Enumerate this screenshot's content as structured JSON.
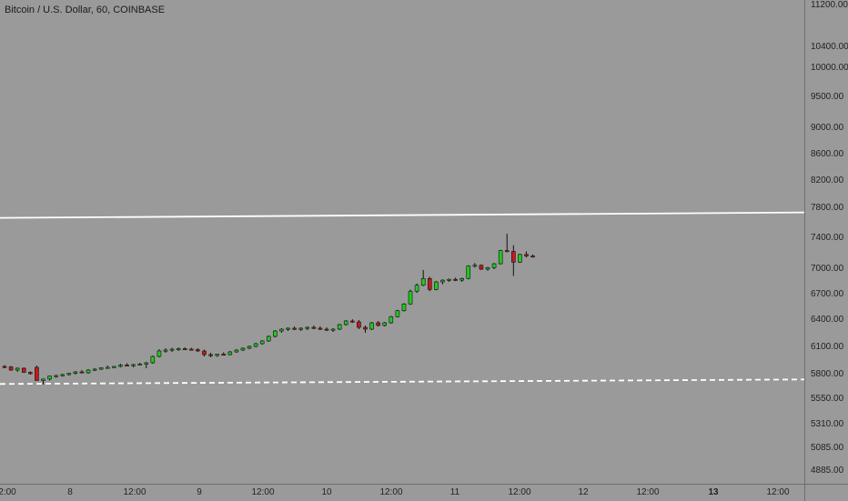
{
  "header": {
    "title": "Bitcoin / U.S. Dollar, 60, COINBASE"
  },
  "price_axis": {
    "labels": [
      "11200.00",
      "10400.00",
      "10000.00",
      "9500.00",
      "9000.00",
      "8600.00",
      "8200.00",
      "7800.00",
      "7400.00",
      "7000.00",
      "6700.00",
      "6400.00",
      "6100.00",
      "5800.00",
      "5550.00",
      "5310.00",
      "5085.00",
      "4885.00"
    ],
    "y_px_placeholder": []
  },
  "time_axis": {
    "labels": [
      "2:00",
      "8",
      "12:00",
      "9",
      "12:00",
      "10",
      "12:00",
      "11",
      "12:00",
      "12",
      "12:00",
      "13",
      "12:00"
    ],
    "bold": [
      false,
      false,
      false,
      false,
      false,
      false,
      false,
      false,
      false,
      false,
      false,
      true,
      false
    ]
  },
  "colors": {
    "up": "#22c722",
    "down": "#c41a1a",
    "wick": "#111111",
    "hline": "#ffffff"
  },
  "chart_data": {
    "type": "candlestick",
    "symbol": "BTCUSD",
    "interval": "60",
    "price_range": [
      4885,
      11200
    ],
    "horizontal_lines": [
      {
        "price": 7780,
        "style": "solid"
      },
      {
        "price": 5760,
        "style": "dashed"
      }
    ],
    "candles": [
      [
        5890,
        5905,
        5870,
        5885
      ],
      [
        5885,
        5895,
        5840,
        5850
      ],
      [
        5850,
        5880,
        5830,
        5870
      ],
      [
        5870,
        5880,
        5820,
        5825
      ],
      [
        5825,
        5835,
        5800,
        5810
      ],
      [
        5880,
        5900,
        5740,
        5740
      ],
      [
        5740,
        5760,
        5700,
        5755
      ],
      [
        5755,
        5790,
        5740,
        5785
      ],
      [
        5785,
        5800,
        5770,
        5790
      ],
      [
        5790,
        5810,
        5780,
        5800
      ],
      [
        5800,
        5820,
        5790,
        5815
      ],
      [
        5815,
        5840,
        5800,
        5830
      ],
      [
        5830,
        5850,
        5815,
        5820
      ],
      [
        5820,
        5860,
        5810,
        5850
      ],
      [
        5850,
        5870,
        5840,
        5860
      ],
      [
        5860,
        5880,
        5850,
        5875
      ],
      [
        5875,
        5900,
        5865,
        5880
      ],
      [
        5880,
        5895,
        5870,
        5890
      ],
      [
        5890,
        5920,
        5880,
        5905
      ],
      [
        5905,
        5925,
        5890,
        5900
      ],
      [
        5900,
        5920,
        5880,
        5910
      ],
      [
        5910,
        5930,
        5900,
        5915
      ],
      [
        5915,
        5940,
        5870,
        5930
      ],
      [
        5930,
        6010,
        5920,
        6000
      ],
      [
        6000,
        6080,
        5990,
        6060
      ],
      [
        6060,
        6090,
        6040,
        6070
      ],
      [
        6070,
        6095,
        6050,
        6080
      ],
      [
        6080,
        6100,
        6060,
        6085
      ],
      [
        6085,
        6100,
        6070,
        6080
      ],
      [
        6080,
        6095,
        6065,
        6075
      ],
      [
        6075,
        6090,
        6050,
        6060
      ],
      [
        6060,
        6075,
        6000,
        6020
      ],
      [
        6020,
        6040,
        5990,
        6010
      ],
      [
        6010,
        6030,
        5995,
        6025
      ],
      [
        6025,
        6045,
        6010,
        6020
      ],
      [
        6020,
        6060,
        6010,
        6050
      ],
      [
        6050,
        6080,
        6040,
        6070
      ],
      [
        6070,
        6100,
        6060,
        6090
      ],
      [
        6090,
        6120,
        6080,
        6110
      ],
      [
        6110,
        6150,
        6100,
        6140
      ],
      [
        6140,
        6180,
        6130,
        6170
      ],
      [
        6170,
        6230,
        6160,
        6220
      ],
      [
        6220,
        6290,
        6210,
        6280
      ],
      [
        6280,
        6310,
        6260,
        6300
      ],
      [
        6300,
        6320,
        6280,
        6310
      ],
      [
        6310,
        6330,
        6290,
        6300
      ],
      [
        6300,
        6320,
        6280,
        6310
      ],
      [
        6310,
        6330,
        6290,
        6320
      ],
      [
        6320,
        6340,
        6300,
        6310
      ],
      [
        6310,
        6330,
        6290,
        6300
      ],
      [
        6300,
        6320,
        6280,
        6295
      ],
      [
        6295,
        6310,
        6270,
        6300
      ],
      [
        6300,
        6360,
        6290,
        6350
      ],
      [
        6350,
        6400,
        6340,
        6390
      ],
      [
        6390,
        6410,
        6370,
        6380
      ],
      [
        6380,
        6400,
        6300,
        6320
      ],
      [
        6320,
        6340,
        6260,
        6300
      ],
      [
        6300,
        6380,
        6290,
        6370
      ],
      [
        6370,
        6390,
        6330,
        6340
      ],
      [
        6340,
        6380,
        6330,
        6370
      ],
      [
        6370,
        6450,
        6360,
        6440
      ],
      [
        6440,
        6520,
        6430,
        6510
      ],
      [
        6510,
        6600,
        6500,
        6590
      ],
      [
        6590,
        6760,
        6580,
        6740
      ],
      [
        6740,
        6830,
        6720,
        6810
      ],
      [
        6810,
        6990,
        6800,
        6890
      ],
      [
        6890,
        6910,
        6740,
        6760
      ],
      [
        6760,
        6860,
        6750,
        6850
      ],
      [
        6850,
        6880,
        6820,
        6870
      ],
      [
        6870,
        6890,
        6850,
        6880
      ],
      [
        6880,
        6900,
        6860,
        6870
      ],
      [
        6870,
        6900,
        6850,
        6890
      ],
      [
        6890,
        7050,
        6880,
        7040
      ],
      [
        7040,
        7080,
        7020,
        7050
      ],
      [
        7050,
        7060,
        6990,
        7000
      ],
      [
        7000,
        7030,
        6980,
        7020
      ],
      [
        7020,
        7080,
        7000,
        7070
      ],
      [
        7070,
        7250,
        7060,
        7240
      ],
      [
        7240,
        7460,
        7220,
        7230
      ],
      [
        7230,
        7310,
        6920,
        7090
      ],
      [
        7090,
        7200,
        7080,
        7190
      ],
      [
        7190,
        7230,
        7150,
        7170
      ],
      [
        7170,
        7190,
        7150,
        7160
      ]
    ]
  }
}
